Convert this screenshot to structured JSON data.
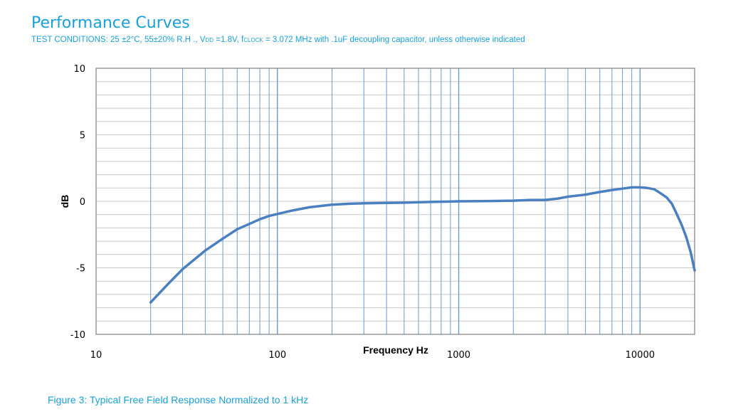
{
  "header": {
    "title": "Performance Curves",
    "subtitle_parts": [
      {
        "text": "TEST CONDITIONS: 25 ±2°C, 55±20% R.H ., V",
        "small": false
      },
      {
        "text": "DD",
        "small": true
      },
      {
        "text": " =1.8V, f",
        "small": false
      },
      {
        "text": "CLOCK",
        "small": true
      },
      {
        "text": " = 3.072 MHz with .1uF decoupling capacitor, unless otherwise indicated",
        "small": false
      }
    ]
  },
  "caption": "Figure 3: Typical Free Field Response Normalized to 1 kHz",
  "chart_data": {
    "type": "line",
    "xlabel": "Frequency Hz",
    "ylabel": "dB",
    "xscale": "log",
    "xlim": [
      10,
      20000
    ],
    "ylim": [
      -10,
      10
    ],
    "grid": true,
    "legend": "none",
    "x_tick_labels": [
      "10",
      "100",
      "1000",
      "10000"
    ],
    "y_tick_labels": [
      "10",
      "5",
      "0",
      "-5",
      "-10"
    ],
    "colors": {
      "line": "#4a7fc0",
      "grid_vertical": "#6a9ccf",
      "grid_horizontal": "#c8c8c8",
      "frame": "#808080"
    },
    "series": [
      {
        "x": [
          20,
          25,
          30,
          40,
          50,
          60,
          70,
          80,
          90,
          100,
          120,
          150,
          200,
          250,
          300,
          400,
          500,
          700,
          1000,
          1500,
          2000,
          2500,
          3000,
          3500,
          4000,
          5000,
          6000,
          7000,
          8000,
          9000,
          10000,
          11000,
          12000,
          13000,
          14000,
          15000,
          16000,
          17000,
          18000,
          19000,
          20000
        ],
        "y": [
          -7.6,
          -6.2,
          -5.1,
          -3.7,
          -2.8,
          -2.1,
          -1.7,
          -1.35,
          -1.1,
          -0.95,
          -0.7,
          -0.45,
          -0.25,
          -0.18,
          -0.15,
          -0.12,
          -0.1,
          -0.05,
          0,
          0.02,
          0.05,
          0.1,
          0.1,
          0.2,
          0.35,
          0.5,
          0.7,
          0.85,
          0.95,
          1.05,
          1.05,
          1.0,
          0.9,
          0.6,
          0.3,
          -0.2,
          -1.0,
          -1.8,
          -2.7,
          -3.8,
          -5.2
        ]
      }
    ]
  }
}
